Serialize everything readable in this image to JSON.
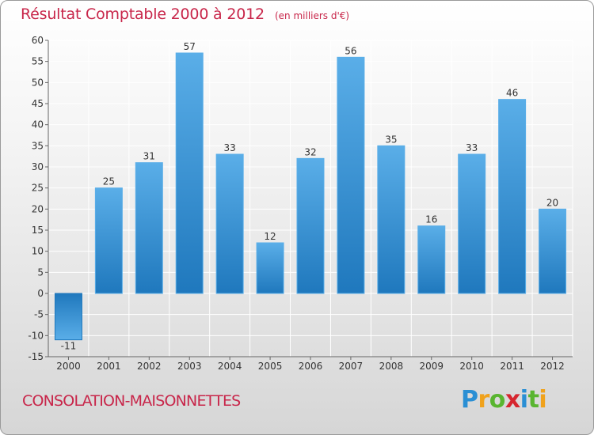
{
  "title": "Résultat Comptable 2000 à 2012",
  "subtitle": "(en milliers d'€)",
  "commune": "CONSOLATION-MAISONNETTES",
  "logo": {
    "letters": [
      "P",
      "r",
      "o",
      "x",
      "i",
      "t",
      "i"
    ],
    "colors": [
      "#2a8fd4",
      "#f0a21c",
      "#59b530",
      "#d6262f",
      "#2a8fd4",
      "#59b530",
      "#f0a21c"
    ]
  },
  "colors": {
    "bar_dark": "#1f78bd",
    "bar_light": "#5aaee8",
    "grid": "#ffffff",
    "axis": "#666666",
    "text": "#333333",
    "accent": "#c8264a"
  },
  "chart_data": {
    "type": "bar",
    "title": "Résultat Comptable 2000 à 2012",
    "ylabel": "en milliers d'€",
    "xlabel": "",
    "categories": [
      "2000",
      "2001",
      "2002",
      "2003",
      "2004",
      "2005",
      "2006",
      "2007",
      "2008",
      "2009",
      "2010",
      "2011",
      "2012"
    ],
    "values": [
      -11,
      25,
      31,
      57,
      33,
      12,
      32,
      56,
      35,
      16,
      33,
      46,
      20
    ],
    "value_labels": [
      "-11",
      "25",
      "31",
      "57",
      "33",
      "12",
      "32",
      "56",
      "35",
      "16",
      "33",
      "46",
      "20"
    ],
    "ylim": [
      -15,
      60
    ],
    "yticks": [
      -15,
      -10,
      -5,
      0,
      5,
      10,
      15,
      20,
      25,
      30,
      35,
      40,
      45,
      50,
      55,
      60
    ],
    "ytick_labels": [
      "-15",
      "-10",
      "-5",
      "0",
      "5",
      "10",
      "15",
      "20",
      "25",
      "30",
      "35",
      "40",
      "45",
      "50",
      "55",
      "60"
    ],
    "grid": true,
    "legend": "none"
  }
}
